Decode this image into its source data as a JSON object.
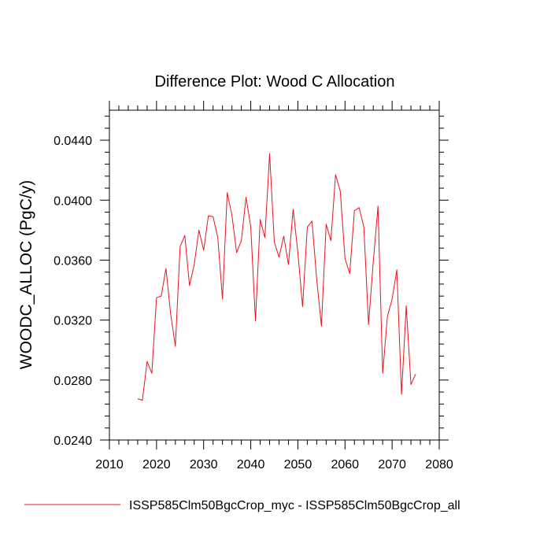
{
  "chart_data": {
    "type": "line",
    "title": "Difference Plot: Wood C Allocation",
    "xlabel": "",
    "ylabel": "WOODC_ALLOC  (PgC/y)",
    "xlim": [
      2010,
      2080
    ],
    "ylim": [
      0.024,
      0.046
    ],
    "x_ticks": [
      2010,
      2020,
      2030,
      2040,
      2050,
      2060,
      2070,
      2080
    ],
    "x_tick_labels": [
      "2010",
      "2020",
      "2030",
      "2040",
      "2050",
      "2060",
      "2070",
      "2080"
    ],
    "y_ticks": [
      0.024,
      0.028,
      0.032,
      0.036,
      0.04,
      0.044
    ],
    "y_tick_labels": [
      "0.0240",
      "0.0280",
      "0.0320",
      "0.0360",
      "0.0400",
      "0.0440"
    ],
    "grid": false,
    "legend_position": "bottom",
    "series": [
      {
        "name": "ISSP585Clm50BgcCrop_myc - ISSP585Clm50BgcCrop_all",
        "color": "#e8141e",
        "x": [
          2016,
          2017,
          2018,
          2019,
          2020,
          2021,
          2022,
          2023,
          2024,
          2025,
          2026,
          2027,
          2028,
          2029,
          2030,
          2031,
          2032,
          2033,
          2034,
          2035,
          2036,
          2037,
          2038,
          2039,
          2040,
          2041,
          2042,
          2043,
          2044,
          2045,
          2046,
          2047,
          2048,
          2049,
          2050,
          2051,
          2052,
          2053,
          2054,
          2055,
          2056,
          2057,
          2058,
          2059,
          2060,
          2061,
          2062,
          2063,
          2064,
          2065,
          2066,
          2067,
          2068,
          2069,
          2070,
          2071,
          2072,
          2073,
          2074,
          2075
        ],
        "y": [
          0.02675,
          0.02665,
          0.02925,
          0.02845,
          0.0335,
          0.0336,
          0.03545,
          0.0324,
          0.03025,
          0.0369,
          0.03765,
          0.0343,
          0.0357,
          0.038,
          0.03665,
          0.03895,
          0.0389,
          0.0375,
          0.0334,
          0.0405,
          0.039,
          0.0365,
          0.0373,
          0.0402,
          0.0382,
          0.03195,
          0.0387,
          0.0375,
          0.0431,
          0.0372,
          0.0362,
          0.0376,
          0.0357,
          0.0394,
          0.0365,
          0.0329,
          0.0382,
          0.0386,
          0.0347,
          0.0316,
          0.0384,
          0.0373,
          0.0417,
          0.0406,
          0.0361,
          0.0351,
          0.0393,
          0.0395,
          0.0382,
          0.0317,
          0.0359,
          0.0396,
          0.02845,
          0.03225,
          0.0334,
          0.03535,
          0.02705,
          0.03295,
          0.0277,
          0.0284
        ]
      }
    ]
  }
}
